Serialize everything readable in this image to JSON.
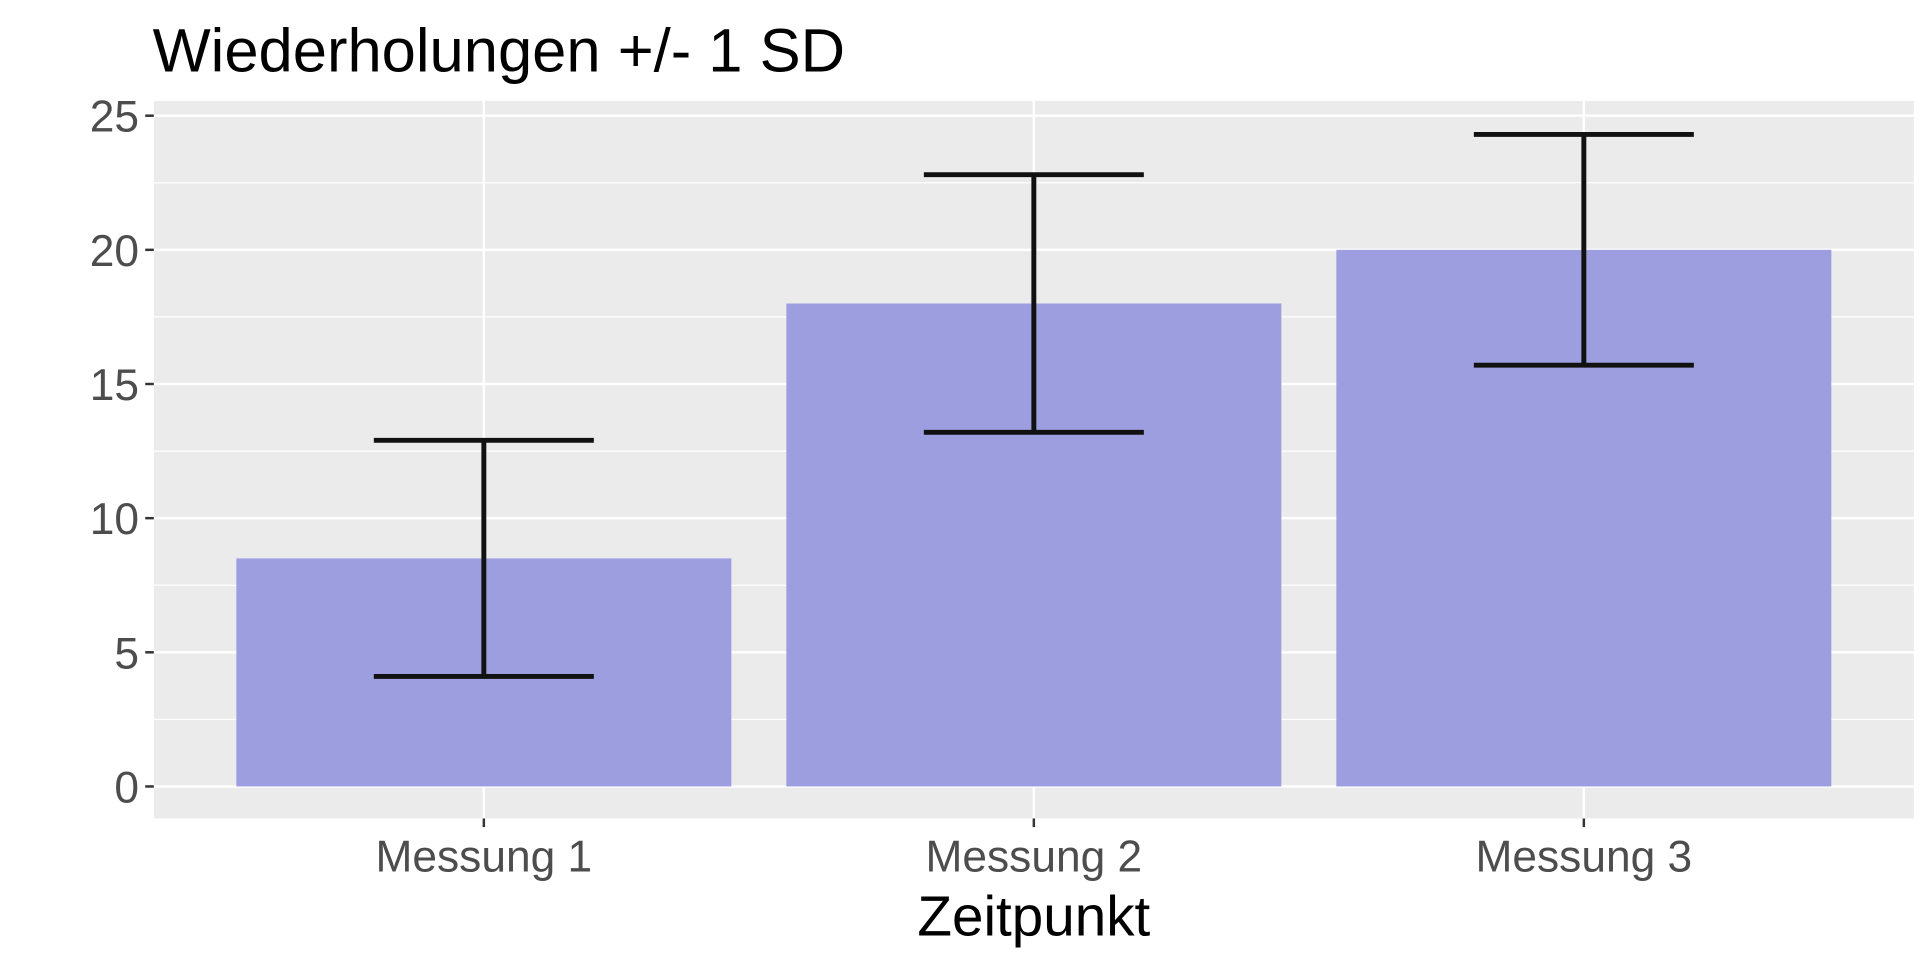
{
  "chart_data": {
    "type": "bar",
    "title": "Wiederholungen +/- 1 SD",
    "xlabel": "Zeitpunkt",
    "ylabel": "",
    "categories": [
      "Messung 1",
      "Messung 2",
      "Messung 3"
    ],
    "values": [
      8.5,
      18.0,
      20.0
    ],
    "error_bars": {
      "lower": [
        4.1,
        13.2,
        15.7
      ],
      "upper": [
        12.9,
        22.8,
        24.3
      ]
    },
    "ylim": [
      0,
      25
    ],
    "yticks": [
      0,
      5,
      10,
      15,
      20,
      25
    ],
    "grid": true,
    "colors": {
      "bar": "#9d9ee0",
      "panel": "#ebebeb",
      "grid": "#ffffff",
      "errorbar": "#111111"
    }
  }
}
